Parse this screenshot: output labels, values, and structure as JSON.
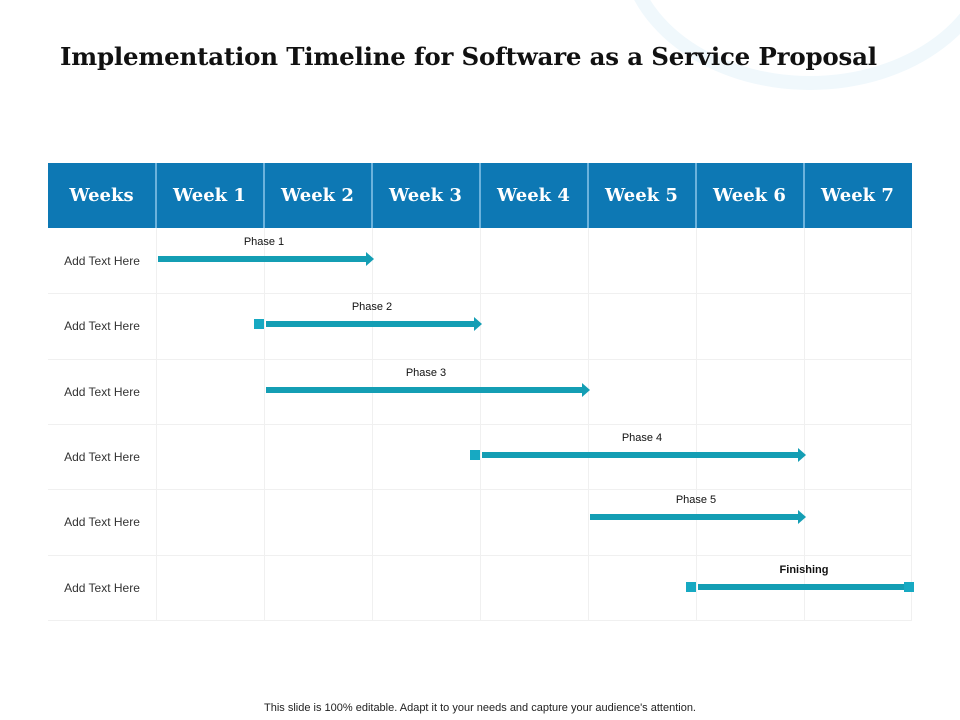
{
  "title": "Implementation Timeline for Software as a Service Proposal",
  "header": [
    "Weeks",
    "Week 1",
    "Week 2",
    "Week 3",
    "Week 4",
    "Week 5",
    "Week 6",
    "Week 7"
  ],
  "rows": [
    {
      "label": "Add Text Here",
      "phase": "Phase 1",
      "start": 0,
      "end": 2,
      "start_marker": "none",
      "end_marker": "arrow",
      "bold": false
    },
    {
      "label": "Add Text Here",
      "phase": "Phase 2",
      "start": 1,
      "end": 3,
      "start_marker": "square",
      "end_marker": "arrow",
      "bold": false
    },
    {
      "label": "Add Text Here",
      "phase": "Phase 3",
      "start": 1,
      "end": 4,
      "start_marker": "none",
      "end_marker": "arrow",
      "bold": false
    },
    {
      "label": "Add Text Here",
      "phase": "Phase 4",
      "start": 3,
      "end": 6,
      "start_marker": "square",
      "end_marker": "arrow",
      "bold": false
    },
    {
      "label": "Add Text Here",
      "phase": "Phase 5",
      "start": 4,
      "end": 6,
      "start_marker": "none",
      "end_marker": "arrow",
      "bold": false
    },
    {
      "label": "Add Text Here",
      "phase": "Finishing",
      "start": 5,
      "end": 7,
      "start_marker": "square",
      "end_marker": "square",
      "bold": true
    }
  ],
  "footer": "This slide is 100% editable. Adapt it to your needs and capture your audience's attention.",
  "colors": {
    "header": "#0d78b4",
    "bar": "#149eb4"
  }
}
